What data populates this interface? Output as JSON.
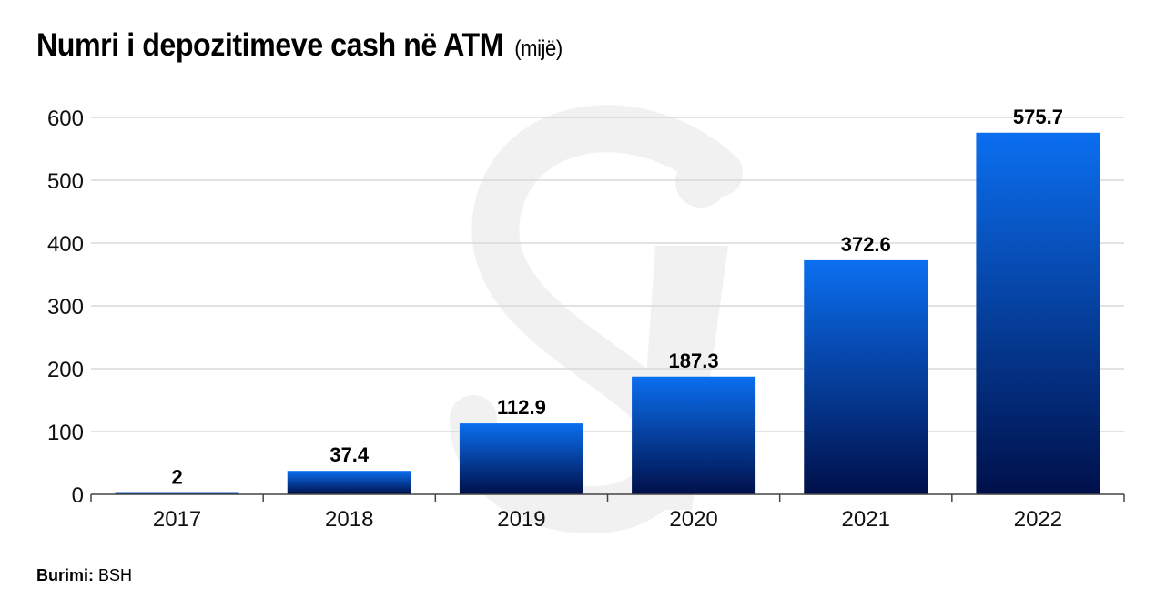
{
  "title": "Numri i depozitimeve cash në ATM",
  "unit": "(mijë)",
  "source": {
    "label": "Burimi:",
    "value": "BSH"
  },
  "chart_data": {
    "type": "bar",
    "title": "Numri i depozitimeve cash në ATM (mijë)",
    "categories": [
      "2017",
      "2018",
      "2019",
      "2020",
      "2021",
      "2022"
    ],
    "values": [
      2,
      37.4,
      112.9,
      187.3,
      372.6,
      575.7
    ],
    "value_labels": [
      "2",
      "37.4",
      "112.9",
      "187.3",
      "372.6",
      "575.7"
    ],
    "y_ticks": [
      0,
      100,
      200,
      300,
      400,
      500,
      600
    ],
    "ylim": [
      0,
      600
    ],
    "xlabel": "",
    "ylabel": "",
    "grid": true,
    "legend": "none",
    "colors": {
      "bar_top": "#0b6ff0",
      "bar_bottom": "#00104a",
      "grid": "#d9d9d9",
      "axis": "#444444",
      "watermark": "#f1f1f1"
    }
  }
}
